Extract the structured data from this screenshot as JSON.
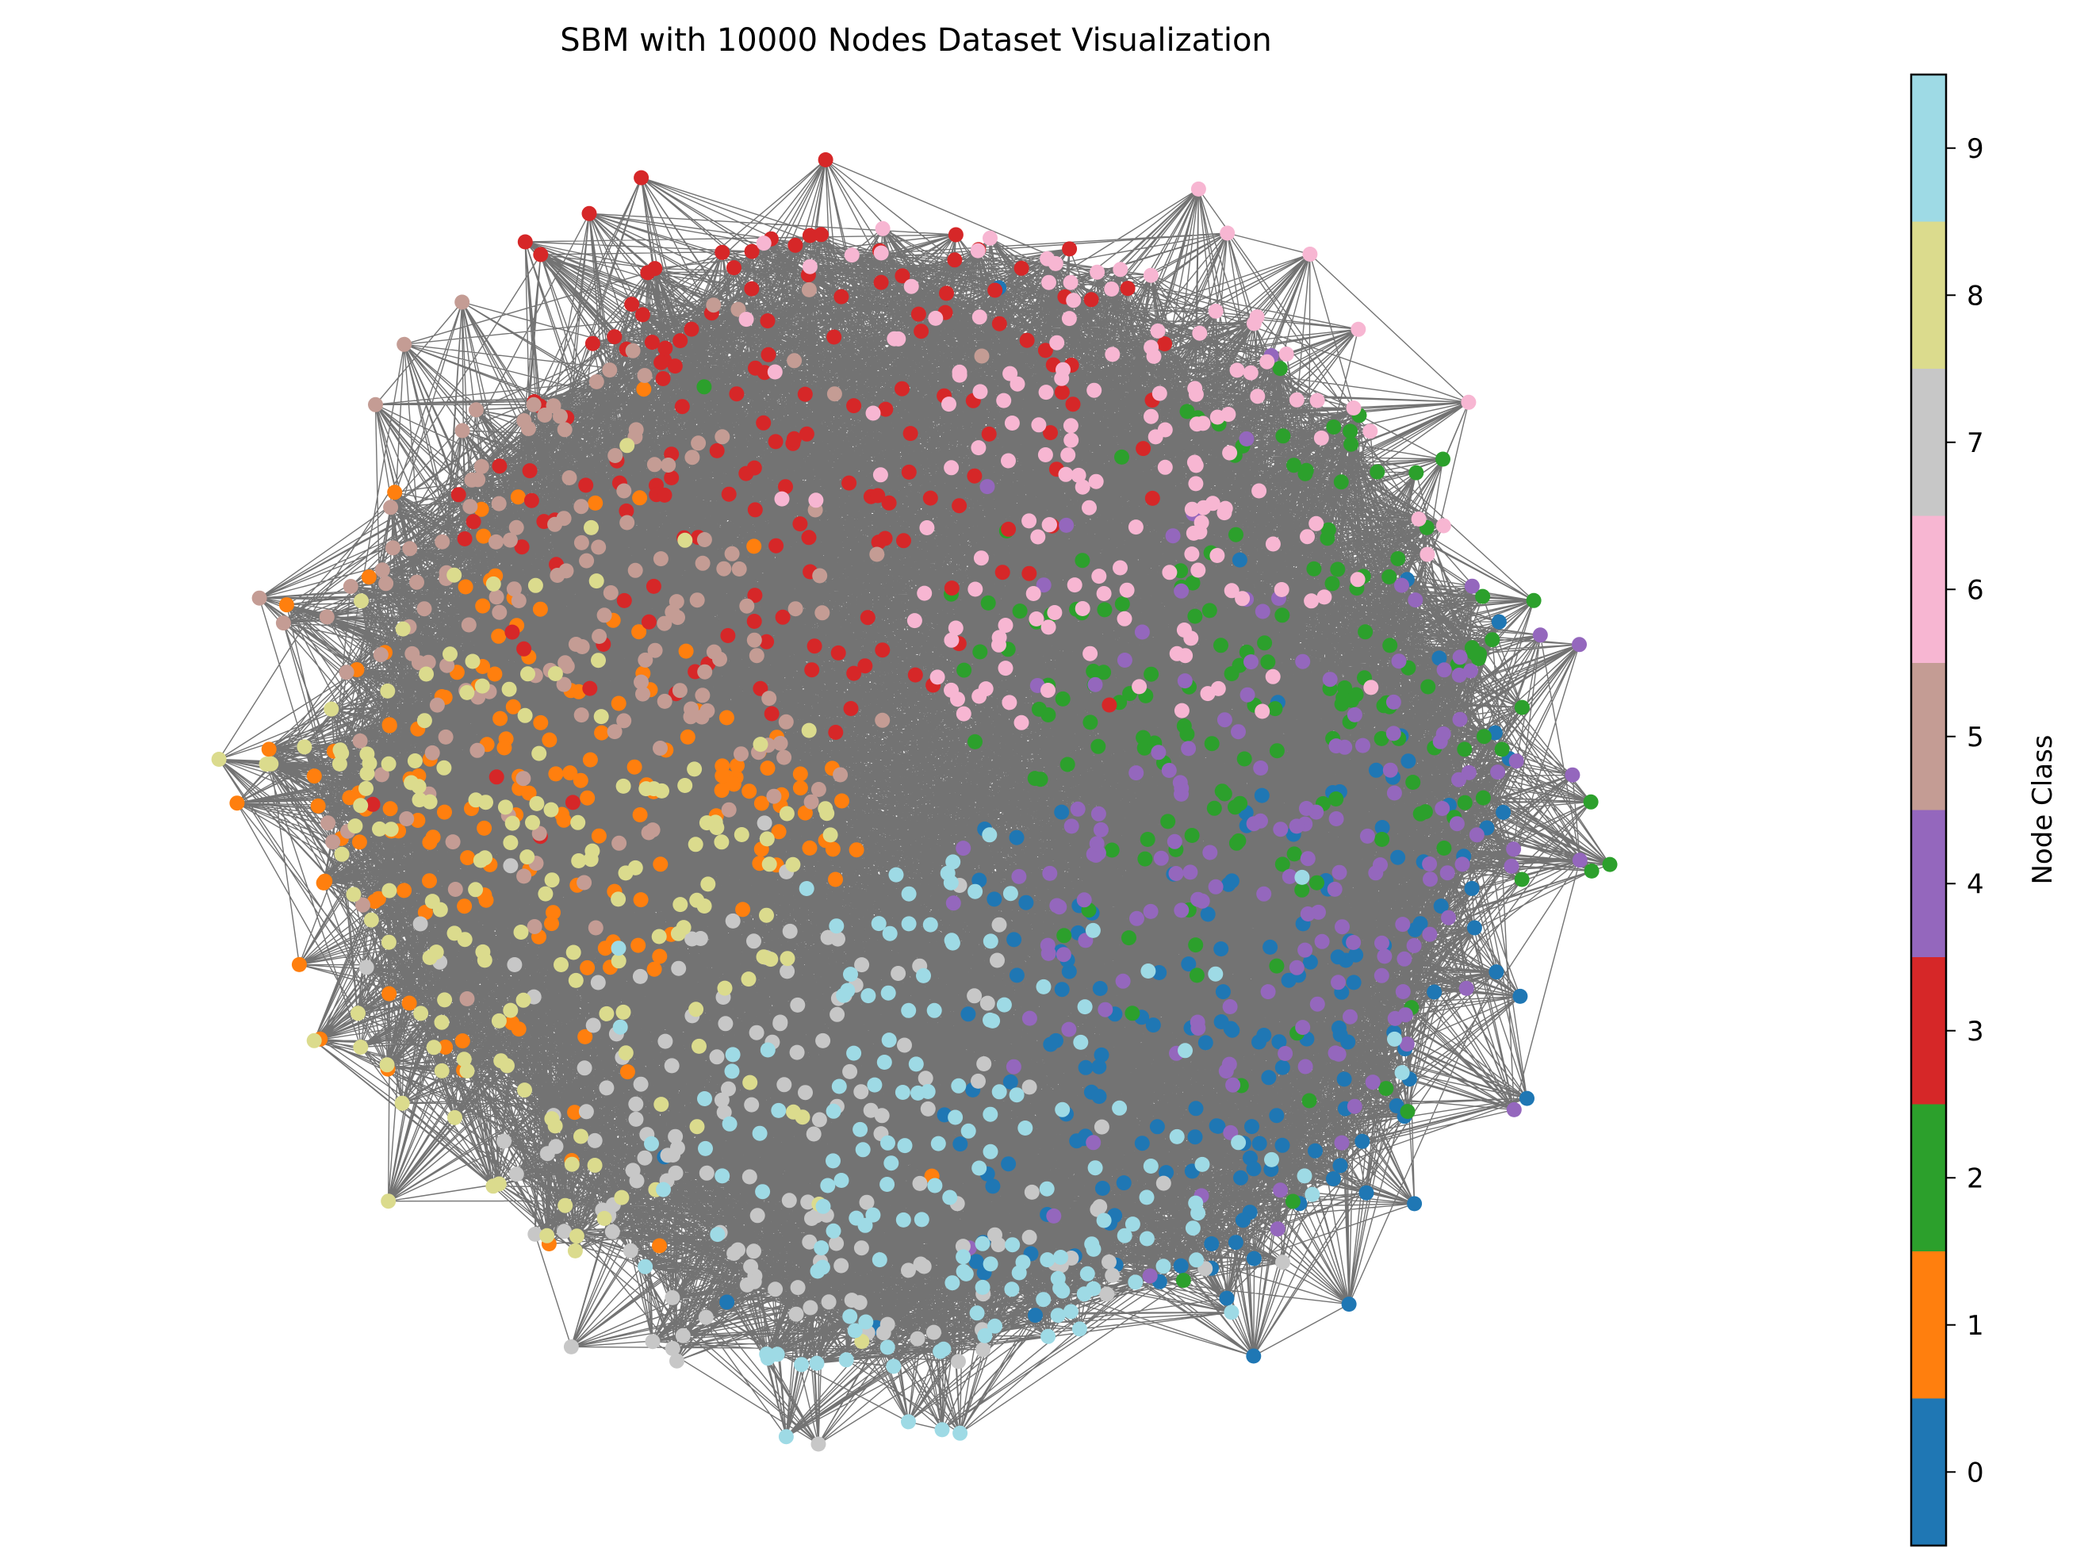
{
  "chart_data": {
    "type": "scatter",
    "subtype": "network-graph",
    "title": "SBM with 10000 Nodes Dataset Visualization",
    "axes_visible": false,
    "edge_color": "#000000",
    "colorbar": {
      "label": "Node Class",
      "range": [
        -0.5,
        9.5
      ],
      "ticks": [
        0,
        1,
        2,
        3,
        4,
        5,
        6,
        7,
        8,
        9
      ],
      "tick_labels": [
        "0",
        "1",
        "2",
        "3",
        "4",
        "5",
        "6",
        "7",
        "8",
        "9"
      ]
    },
    "classes": [
      {
        "class": 0,
        "color": "#1f77b4",
        "approx_nodes": 160
      },
      {
        "class": 1,
        "color": "#ff7f0e",
        "approx_nodes": 160
      },
      {
        "class": 2,
        "color": "#2ca02c",
        "approx_nodes": 160
      },
      {
        "class": 3,
        "color": "#d62728",
        "approx_nodes": 160
      },
      {
        "class": 4,
        "color": "#9467bd",
        "approx_nodes": 160
      },
      {
        "class": 5,
        "color": "#c49c94",
        "approx_nodes": 160
      },
      {
        "class": 6,
        "color": "#f7b6d2",
        "approx_nodes": 160
      },
      {
        "class": 7,
        "color": "#c7c7c7",
        "approx_nodes": 160
      },
      {
        "class": 8,
        "color": "#dbdb8d",
        "approx_nodes": 160
      },
      {
        "class": 9,
        "color": "#9edae5",
        "approx_nodes": 160
      }
    ]
  }
}
